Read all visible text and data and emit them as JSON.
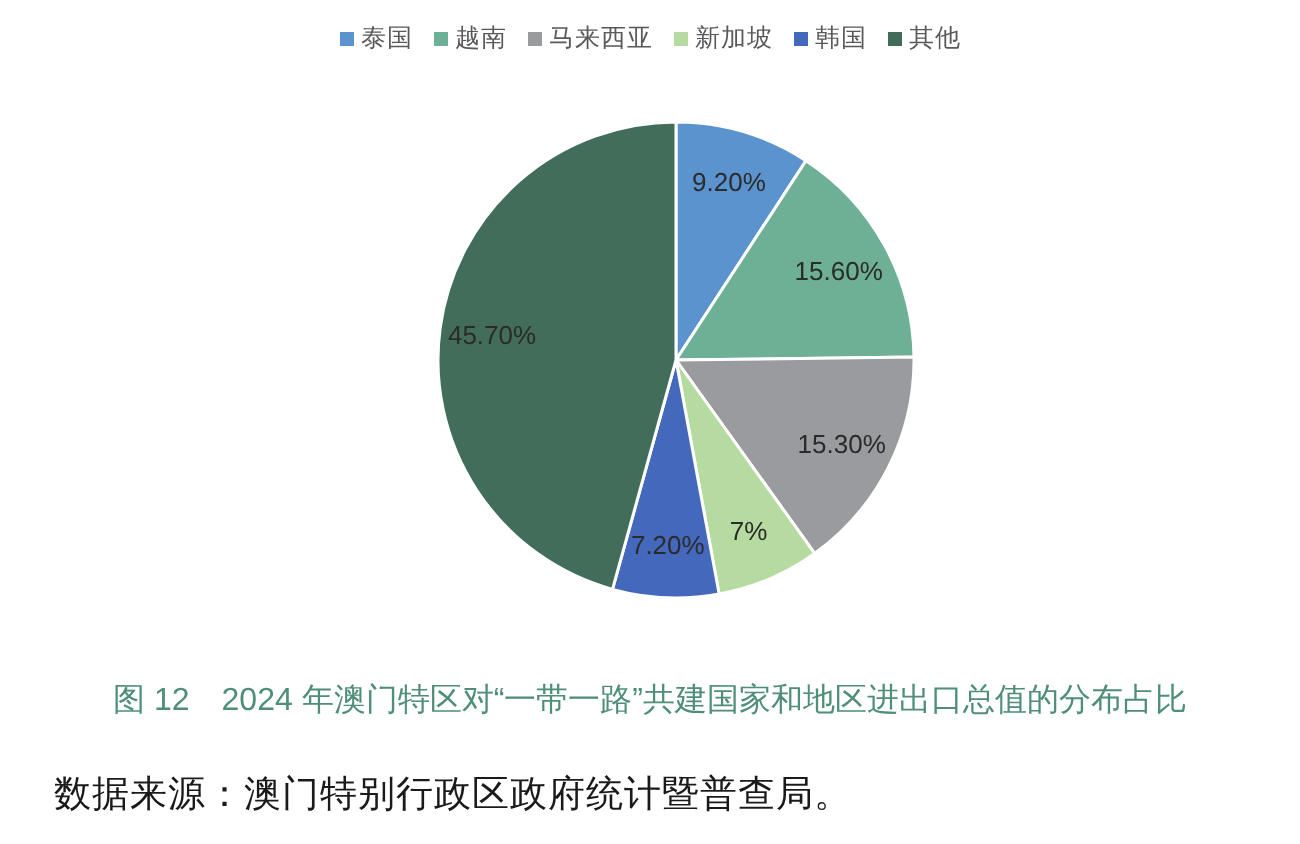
{
  "chart_data": {
    "type": "pie",
    "categories": [
      "泰国",
      "越南",
      "马来西亚",
      "新加坡",
      "韩国",
      "其他"
    ],
    "values": [
      9.2,
      15.6,
      15.3,
      7,
      7.2,
      45.7
    ],
    "value_labels": [
      "9.20%",
      "15.60%",
      "15.30%",
      "7%",
      "7.20%",
      "45.70%"
    ],
    "colors": [
      "#5b93cf",
      "#6db095",
      "#9a9b9e",
      "#b5dba0",
      "#4468bc",
      "#426d5b"
    ],
    "legend": "top",
    "annotations": [
      "图 12　2024 年澳门特区对“一带一路”共建国家和地区进出口总值的分布占比",
      "数据来源：澳门特别行政区政府统计暨普查局。"
    ]
  }
}
